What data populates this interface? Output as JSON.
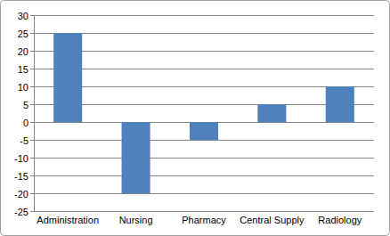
{
  "chart_data": {
    "type": "bar",
    "categories": [
      "Administration",
      "Nursing",
      "Pharmacy",
      "Central Supply",
      "Radiology"
    ],
    "values": [
      25,
      -20,
      -5,
      5,
      10
    ],
    "color": "#4f81bd",
    "ylim": [
      -25,
      30
    ],
    "yticks": [
      -25,
      -20,
      -15,
      -10,
      -5,
      0,
      5,
      10,
      15,
      20,
      25,
      30
    ],
    "grid": true
  }
}
